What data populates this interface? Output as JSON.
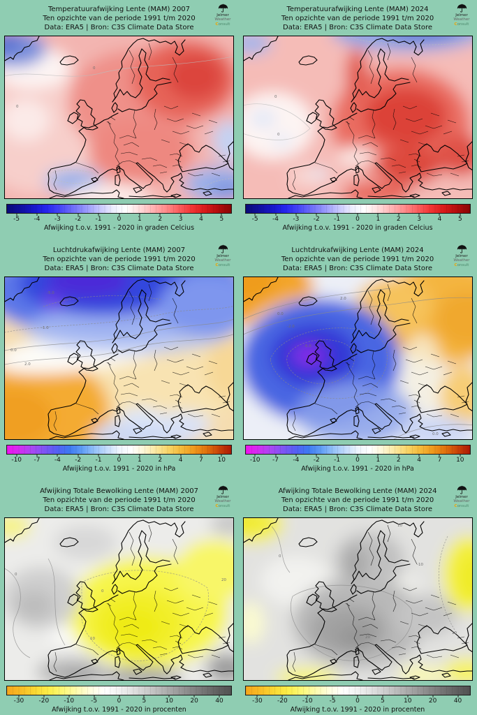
{
  "page": {
    "background": "#8fcdb2"
  },
  "logo": {
    "name": "Jelmer Weather Consult",
    "lines": [
      "Jelmer",
      "Weather",
      "Consult"
    ],
    "icon": "umbrella-icon"
  },
  "colorbars": {
    "temperature": {
      "label": "Afwijking t.o.v. 1991 - 2020 in graden Celcius",
      "ticks": [
        "-5",
        "-4",
        "-3",
        "-2",
        "-1",
        "0",
        "1",
        "2",
        "3",
        "4",
        "5"
      ],
      "colors": [
        "#0a0a78",
        "#10109e",
        "#1717c8",
        "#2525ee",
        "#4646f6",
        "#6e6ef9",
        "#9898fb",
        "#c4c4fd",
        "#ececfe",
        "#ffffff",
        "#ffdede",
        "#ffb6b6",
        "#ff8d8d",
        "#fb6060",
        "#f23535",
        "#d81b1b",
        "#b30d0d",
        "#8a0606"
      ]
    },
    "pressure": {
      "label": "Afwijking t.o.v. 1991 - 2020 in hPa",
      "ticks": [
        "-10",
        "-7",
        "-4",
        "-2",
        "-1",
        "0",
        "1",
        "2",
        "4",
        "7",
        "10"
      ],
      "colors": [
        "#ef13ef",
        "#d32df1",
        "#a948f3",
        "#7e55f4",
        "#5560f4",
        "#3e79f2",
        "#5e9cf5",
        "#93c0f8",
        "#c3dbfb",
        "#eef4fd",
        "#ffffff",
        "#fdf6d5",
        "#fbe79e",
        "#f8d365",
        "#f5b93a",
        "#f0991d",
        "#e0720e",
        "#c94408",
        "#ad1905"
      ]
    },
    "clouds": {
      "label": "Afwijking t.o.v. 1991 - 2020 in procenten",
      "ticks": [
        "-30",
        "-20",
        "-10",
        "-5",
        "0",
        "5",
        "10",
        "20",
        "40"
      ],
      "colors": [
        "#f6a51c",
        "#f8bc25",
        "#fad833",
        "#fcee49",
        "#fdf878",
        "#fefcb0",
        "#fffee0",
        "#ffffff",
        "#f1f1f1",
        "#e0e0e0",
        "#cccccc",
        "#b6b6b6",
        "#a0a0a0",
        "#8a8a8a",
        "#757575",
        "#616161",
        "#525252"
      ]
    }
  },
  "panels": [
    {
      "id": "temperature-2007",
      "title": [
        "Temperatuurafwijking Lente (MAM) 2007",
        "Ten opzichte van de periode 1991 t/m 2020",
        "Data: ERA5 | Bron: C3S Climate Data Store"
      ]
    },
    {
      "id": "temperature-2024",
      "title": [
        "Temperatuurafwijking Lente (MAM) 2024",
        "Ten opzichte van de periode 1991 t/m 2020",
        "Data: ERA5 | Bron: C3S Climate Data Store"
      ]
    },
    {
      "id": "pressure-2007",
      "title": [
        "Luchtdrukafwijking Lente (MAM) 2007",
        "Ten opzichte van de periode 1991 t/m 2020",
        "Data: ERA5 | Bron: C3S Climate Data Store"
      ]
    },
    {
      "id": "pressure-2024",
      "title": [
        "Luchtdrukafwijking Lente (MAM) 2024",
        "Ten opzichte van de periode 1991 t/m 2020",
        "Data: ERA5 | Bron: C3S Climate Data Store"
      ]
    },
    {
      "id": "clouds-2007",
      "title": [
        "Afwijking Totale Bewolking Lente (MAM) 2007",
        "Ten opzichte van de periode 1991 t/m 2020",
        "Data: ERA5 | Bron: C3S Climate Data Store"
      ]
    },
    {
      "id": "clouds-2024",
      "title": [
        "Afwijking Totale Bewolking Lente (MAM) 2024",
        "Ten opzichte van de periode 1991 t/m 2020",
        "Data: ERA5 | Bron: C3S Climate Data Store"
      ]
    }
  ],
  "maps": {
    "temp2007": {
      "labels": [
        "0",
        "0"
      ]
    },
    "temp2024": {
      "labels": [
        "0",
        "0"
      ]
    },
    "pressure2007": {
      "labels": [
        "-5.0",
        "-1.0",
        "0.0",
        "2.0"
      ]
    },
    "pressure2024": {
      "labels": [
        "2.0",
        "0.0",
        "-2.0",
        "-5.0",
        "0.0"
      ]
    },
    "clouds2007": {
      "labels": [
        "0",
        "10",
        "20",
        "0"
      ]
    },
    "clouds2024": {
      "labels": [
        "10",
        "0",
        "-10",
        "20",
        "10"
      ]
    }
  }
}
